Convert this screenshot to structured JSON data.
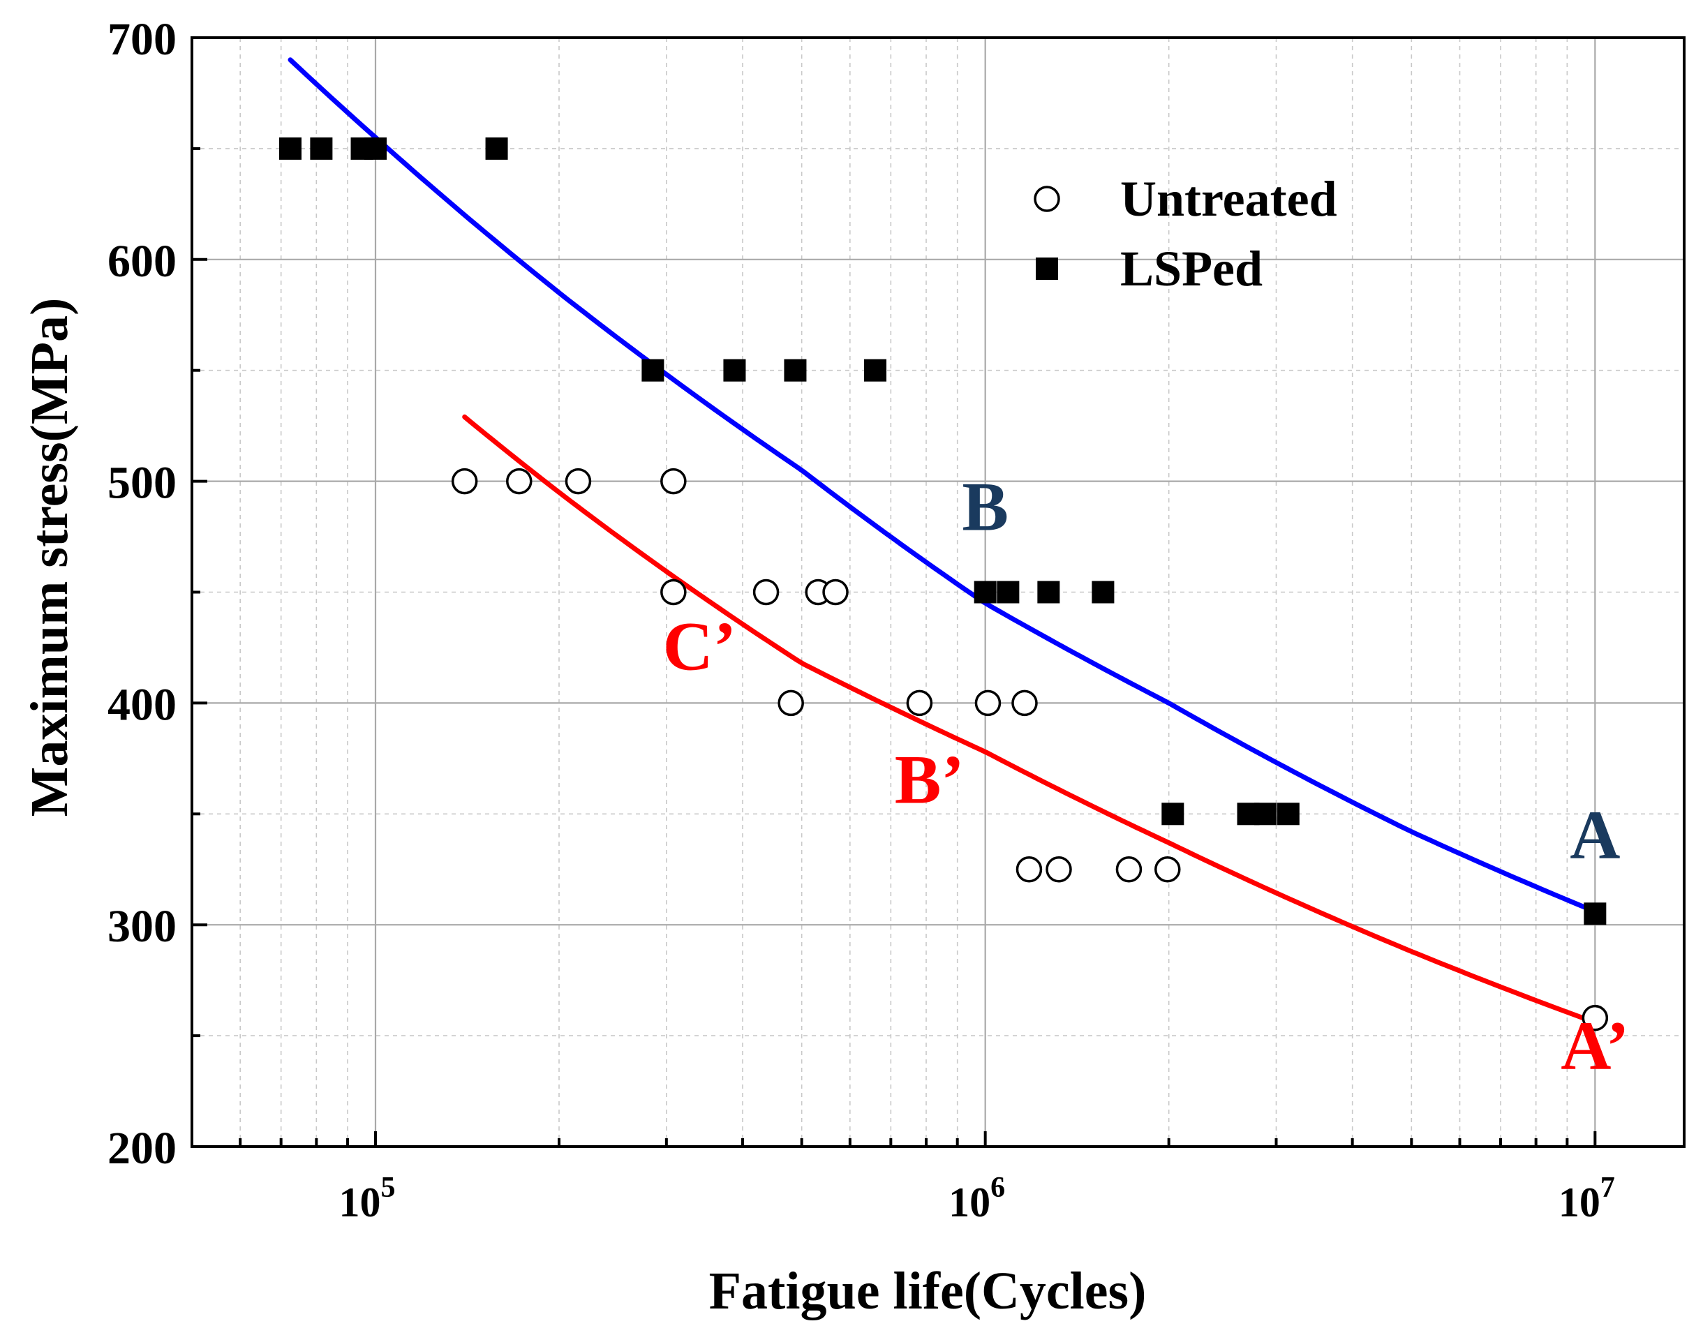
{
  "chart_data": {
    "type": "scatter",
    "title": "",
    "xlabel": "Fatigue life(Cycles)",
    "ylabel": "Maximum stress(MPa)",
    "xscale": "log",
    "xlim": [
      50000,
      14000000
    ],
    "ylim": [
      200,
      700
    ],
    "grid": true,
    "x_tick_labels": [
      {
        "value": 100000,
        "base": "10",
        "exp": "5"
      },
      {
        "value": 1000000,
        "base": "10",
        "exp": "6"
      },
      {
        "value": 10000000,
        "base": "10",
        "exp": "7"
      }
    ],
    "y_ticks": [
      200,
      300,
      400,
      500,
      600,
      700
    ],
    "y_tick_labels": [
      "200",
      "300",
      "400",
      "500",
      "600",
      "700"
    ],
    "legend": {
      "position": "top-right",
      "entries": [
        {
          "label": "Untreated",
          "marker": "open-circle"
        },
        {
          "label": "LSPed",
          "marker": "filled-square"
        }
      ]
    },
    "series": [
      {
        "name": "Untreated",
        "marker": "open-circle",
        "points": [
          [
            140000,
            500
          ],
          [
            172000,
            500
          ],
          [
            215000,
            500
          ],
          [
            308000,
            500
          ],
          [
            308000,
            450
          ],
          [
            437000,
            450
          ],
          [
            532000,
            450
          ],
          [
            568000,
            450
          ],
          [
            480000,
            400
          ],
          [
            780000,
            400
          ],
          [
            1010000,
            400
          ],
          [
            1160000,
            400
          ],
          [
            1180000,
            325
          ],
          [
            1320000,
            325
          ],
          [
            1720000,
            325
          ],
          [
            1990000,
            325
          ],
          [
            10000000,
            258
          ]
        ]
      },
      {
        "name": "LSPed",
        "marker": "filled-square",
        "points": [
          [
            72500,
            650
          ],
          [
            81500,
            650
          ],
          [
            95000,
            650
          ],
          [
            100000,
            650
          ],
          [
            158000,
            650
          ],
          [
            285000,
            550
          ],
          [
            388000,
            550
          ],
          [
            488000,
            550
          ],
          [
            660000,
            550
          ],
          [
            1000000,
            450
          ],
          [
            1090000,
            450
          ],
          [
            1270000,
            450
          ],
          [
            1560000,
            450
          ],
          [
            2030000,
            350
          ],
          [
            2700000,
            350
          ],
          [
            2880000,
            350
          ],
          [
            3140000,
            350
          ],
          [
            10000000,
            305
          ]
        ]
      }
    ],
    "fit_curves": [
      {
        "name": "LSPed fit",
        "color": "#0000ff",
        "points": [
          [
            72500,
            690
          ],
          [
            100000,
            655
          ],
          [
            200000,
            585
          ],
          [
            500000,
            505
          ],
          [
            1000000,
            445
          ],
          [
            2000000,
            400
          ],
          [
            5000000,
            342
          ],
          [
            10000000,
            306
          ]
        ]
      },
      {
        "name": "Untreated fit",
        "color": "#ff0000",
        "points": [
          [
            140000,
            529
          ],
          [
            200000,
            495
          ],
          [
            500000,
            418
          ],
          [
            1000000,
            378
          ],
          [
            2000000,
            337
          ],
          [
            5000000,
            288
          ],
          [
            10000000,
            256
          ]
        ]
      }
    ],
    "annotations": [
      {
        "text": "A",
        "color": "#1a3a5e",
        "x": 10000000,
        "y": 330
      },
      {
        "text": "B",
        "color": "#1a3a5e",
        "x": 1000000,
        "y": 478
      },
      {
        "text": "A’",
        "color": "#ff0000",
        "x": 10000000,
        "y": 235
      },
      {
        "text": "B’",
        "color": "#ff0000",
        "x": 810000,
        "y": 355
      },
      {
        "text": "C’",
        "color": "#ff0000",
        "x": 340000,
        "y": 415
      }
    ]
  }
}
